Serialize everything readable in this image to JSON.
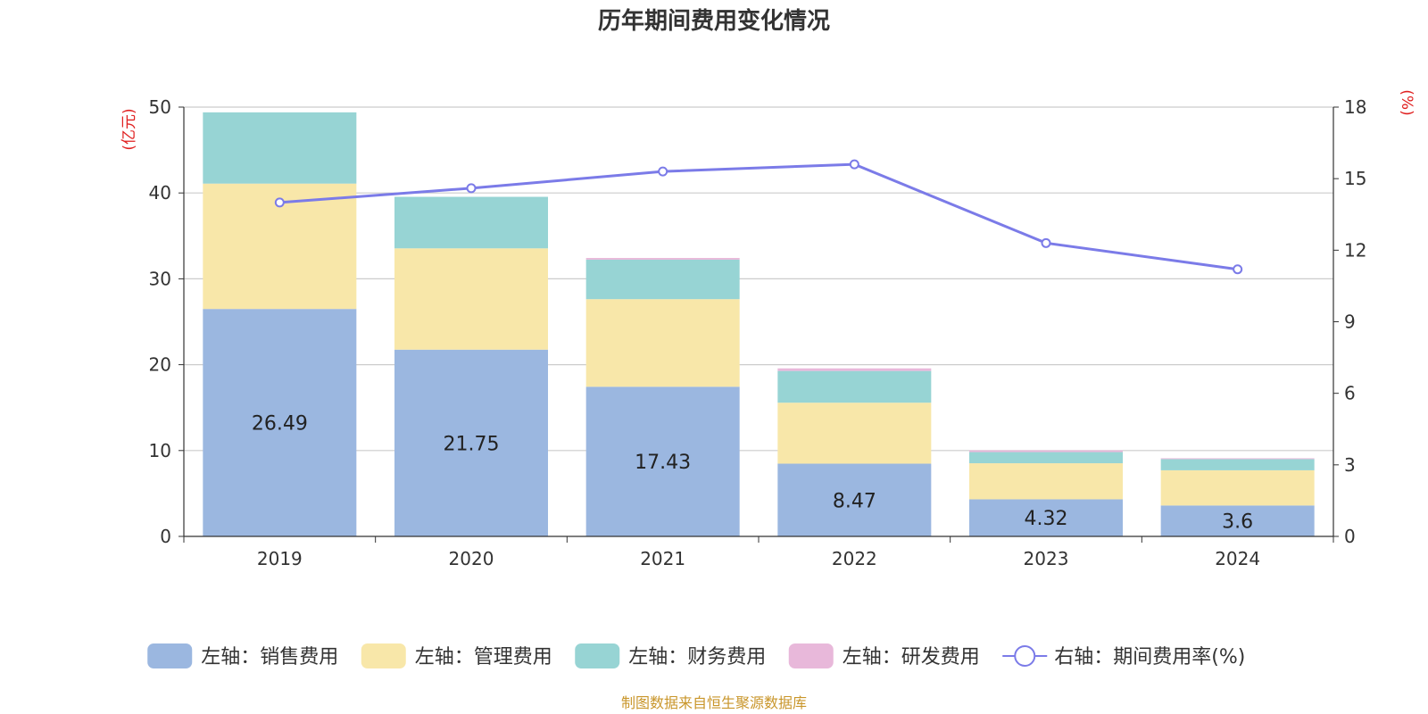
{
  "chart_data": {
    "type": "bar",
    "title": "历年期间费用变化情况",
    "categories": [
      "2019",
      "2020",
      "2021",
      "2022",
      "2023",
      "2024"
    ],
    "left_axis": {
      "unit": "(亿元)",
      "ylim": [
        0,
        50
      ],
      "ticks": [
        "0",
        "10",
        "20",
        "30",
        "40",
        "50"
      ]
    },
    "right_axis": {
      "unit": "(%)",
      "ylim": [
        0,
        18
      ],
      "ticks": [
        "0",
        "3",
        "6",
        "9",
        "12",
        "15",
        "18"
      ]
    },
    "series": [
      {
        "name": "左轴：销售费用",
        "type": "bar",
        "axis": "left",
        "color": "#9bb7e0",
        "values": [
          26.49,
          21.75,
          17.43,
          8.47,
          4.32,
          3.6
        ],
        "labels": [
          "26.49",
          "21.75",
          "17.43",
          "8.47",
          "4.32",
          "3.6"
        ]
      },
      {
        "name": "左轴：管理费用",
        "type": "bar",
        "axis": "left",
        "color": "#f8e7a9",
        "values": [
          14.6,
          11.8,
          10.2,
          7.1,
          4.2,
          4.1
        ]
      },
      {
        "name": "左轴：财务费用",
        "type": "bar",
        "axis": "left",
        "color": "#97d4d4",
        "values": [
          8.3,
          6.0,
          4.6,
          3.7,
          1.3,
          1.3
        ]
      },
      {
        "name": "左轴：研发费用",
        "type": "bar",
        "axis": "left",
        "color": "#e8b8da",
        "values": [
          0.0,
          0.0,
          0.2,
          0.3,
          0.2,
          0.1
        ]
      },
      {
        "name": "右轴：期间费用率(%)",
        "type": "line",
        "axis": "right",
        "color": "#7b7be8",
        "values": [
          14.0,
          14.6,
          15.3,
          15.6,
          12.3,
          11.2
        ]
      }
    ],
    "legend_position": "bottom",
    "grid": true
  },
  "source": "制图数据来自恒生聚源数据库"
}
